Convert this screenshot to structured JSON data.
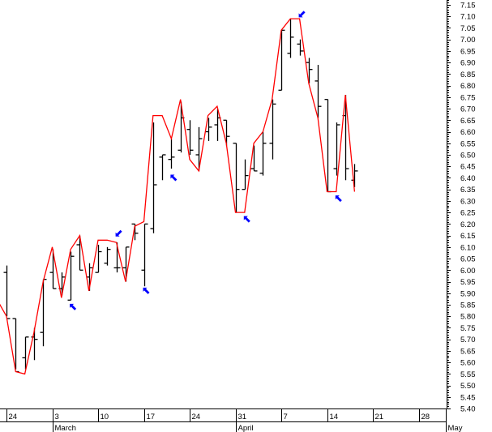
{
  "chart_data": {
    "type": "ohlc",
    "title": "",
    "xlabel": "",
    "ylabel": "",
    "ylim": [
      5.4,
      7.15
    ],
    "y_tick_step": 0.05,
    "y_axis_position": "right",
    "grid": false,
    "colors": {
      "bars": "#000000",
      "line": "#ff0000",
      "arrows": "#0000ff"
    },
    "x_tick_labels": [
      {
        "date": "02-24",
        "label": "24"
      },
      {
        "date": "03-03",
        "label": "3"
      },
      {
        "date": "03-10",
        "label": "10"
      },
      {
        "date": "03-17",
        "label": "17"
      },
      {
        "date": "03-24",
        "label": "24"
      },
      {
        "date": "03-31",
        "label": "31"
      },
      {
        "date": "04-07",
        "label": "7"
      },
      {
        "date": "04-14",
        "label": "14"
      },
      {
        "date": "04-21",
        "label": "21"
      },
      {
        "date": "04-28",
        "label": "28"
      }
    ],
    "month_labels": [
      {
        "date": "03-03",
        "label": "March"
      },
      {
        "date": "03-31",
        "label": "April"
      },
      {
        "date": "05-01",
        "label": "May"
      }
    ],
    "bars": [
      {
        "date": "02-24",
        "o": 5.99,
        "h": 6.02,
        "l": 5.8,
        "c": 5.79
      },
      {
        "date": "02-25",
        "o": 5.79,
        "h": 5.79,
        "l": 5.57,
        "c": 5.56
      },
      {
        "date": "02-26",
        "o": 5.62,
        "h": 5.71,
        "l": 5.57,
        "c": 5.71
      },
      {
        "date": "02-27",
        "o": 5.71,
        "h": 5.75,
        "l": 5.61,
        "c": 5.7
      },
      {
        "date": "02-28",
        "o": 5.73,
        "h": 5.96,
        "l": 5.67,
        "c": 5.96
      },
      {
        "date": "03-03",
        "o": 5.99,
        "h": 6.09,
        "l": 5.92,
        "c": 5.92
      },
      {
        "date": "03-04",
        "o": 5.92,
        "h": 5.99,
        "l": 5.89,
        "c": 5.97
      },
      {
        "date": "03-05",
        "o": 5.87,
        "h": 6.08,
        "l": 5.87,
        "c": 6.06
      },
      {
        "date": "03-06",
        "o": 6.11,
        "h": 6.15,
        "l": 6.0,
        "c": 6.0
      },
      {
        "date": "03-07",
        "o": 5.97,
        "h": 6.03,
        "l": 5.91,
        "c": 6.01
      },
      {
        "date": "03-10",
        "o": 5.99,
        "h": 6.11,
        "l": 5.99,
        "c": 6.08
      },
      {
        "date": "03-11",
        "o": 6.03,
        "h": 6.1,
        "l": 6.02,
        "c": 6.09
      },
      {
        "date": "03-12",
        "o": 6.01,
        "h": 6.12,
        "l": 5.99,
        "c": 6.01
      },
      {
        "date": "03-13",
        "o": 6.01,
        "h": 6.1,
        "l": 5.95,
        "c": 6.1
      },
      {
        "date": "03-14",
        "o": 6.2,
        "h": 6.2,
        "l": 6.13,
        "c": 6.16
      },
      {
        "date": "03-17",
        "o": 6.0,
        "h": 6.2,
        "l": 5.93,
        "c": 6.2
      },
      {
        "date": "03-18",
        "o": 6.18,
        "h": 6.64,
        "l": 6.16,
        "c": 6.37
      },
      {
        "date": "03-19",
        "o": 6.49,
        "h": 6.5,
        "l": 6.39,
        "c": 6.5
      },
      {
        "date": "03-20",
        "o": 6.48,
        "h": 6.57,
        "l": 6.44,
        "c": 6.49
      },
      {
        "date": "03-21",
        "o": 6.52,
        "h": 6.73,
        "l": 6.51,
        "c": 6.66
      },
      {
        "date": "03-24",
        "o": 6.61,
        "h": 6.65,
        "l": 6.5,
        "c": 6.52
      },
      {
        "date": "03-25",
        "o": 6.5,
        "h": 6.62,
        "l": 6.43,
        "c": 6.57
      },
      {
        "date": "03-26",
        "o": 6.6,
        "h": 6.66,
        "l": 6.56,
        "c": 6.62
      },
      {
        "date": "03-27",
        "o": 6.63,
        "h": 6.7,
        "l": 6.56,
        "c": 6.66
      },
      {
        "date": "03-28",
        "o": 6.65,
        "h": 6.65,
        "l": 6.54,
        "c": 6.58
      },
      {
        "date": "03-31",
        "o": 6.55,
        "h": 6.55,
        "l": 6.25,
        "c": 6.35
      },
      {
        "date": "04-01",
        "o": 6.35,
        "h": 6.48,
        "l": 6.35,
        "c": 6.41
      },
      {
        "date": "04-02",
        "o": 6.44,
        "h": 6.54,
        "l": 6.43,
        "c": 6.43
      },
      {
        "date": "04-03",
        "o": 6.42,
        "h": 6.6,
        "l": 6.41,
        "c": 6.55
      },
      {
        "date": "04-04",
        "o": 6.55,
        "h": 6.74,
        "l": 6.48,
        "c": 6.72
      },
      {
        "date": "04-07",
        "o": 6.78,
        "h": 7.04,
        "l": 6.78,
        "c": 7.04
      },
      {
        "date": "04-08",
        "o": 6.94,
        "h": 7.09,
        "l": 6.92,
        "c": 7.01
      },
      {
        "date": "04-09",
        "o": 6.98,
        "h": 7.0,
        "l": 6.93,
        "c": 6.95
      },
      {
        "date": "04-10",
        "o": 6.9,
        "h": 6.92,
        "l": 6.81,
        "c": 6.87
      },
      {
        "date": "04-11",
        "o": 6.82,
        "h": 6.89,
        "l": 6.66,
        "c": 6.71
      },
      {
        "date": "04-14",
        "o": 6.74,
        "h": 6.74,
        "l": 6.34,
        "c": 6.34
      },
      {
        "date": "04-15",
        "o": 6.44,
        "h": 6.64,
        "l": 6.41,
        "c": 6.63
      },
      {
        "date": "04-16",
        "o": 6.67,
        "h": 6.76,
        "l": 6.39,
        "c": 6.44
      },
      {
        "date": "04-17",
        "o": 6.39,
        "h": 6.46,
        "l": 6.36,
        "c": 6.43
      }
    ],
    "line": [
      {
        "date": "02-21",
        "v": 5.87
      },
      {
        "date": "02-24",
        "v": 5.8
      },
      {
        "date": "02-25",
        "v": 5.56
      },
      {
        "date": "02-26",
        "v": 5.55
      },
      {
        "date": "02-27",
        "v": 5.73
      },
      {
        "date": "02-28",
        "v": 5.95
      },
      {
        "date": "03-03",
        "v": 6.1
      },
      {
        "date": "03-04",
        "v": 5.88
      },
      {
        "date": "03-05",
        "v": 6.09
      },
      {
        "date": "03-06",
        "v": 6.15
      },
      {
        "date": "03-07",
        "v": 5.91
      },
      {
        "date": "03-10",
        "v": 6.13
      },
      {
        "date": "03-11",
        "v": 6.13
      },
      {
        "date": "03-12",
        "v": 6.12
      },
      {
        "date": "03-13",
        "v": 5.95
      },
      {
        "date": "03-14",
        "v": 6.19
      },
      {
        "date": "03-17",
        "v": 6.21
      },
      {
        "date": "03-18",
        "v": 6.67
      },
      {
        "date": "03-19",
        "v": 6.67
      },
      {
        "date": "03-20",
        "v": 6.57
      },
      {
        "date": "03-21",
        "v": 6.74
      },
      {
        "date": "03-24",
        "v": 6.48
      },
      {
        "date": "03-25",
        "v": 6.43
      },
      {
        "date": "03-26",
        "v": 6.67
      },
      {
        "date": "03-27",
        "v": 6.71
      },
      {
        "date": "03-28",
        "v": 6.55
      },
      {
        "date": "03-31",
        "v": 6.25
      },
      {
        "date": "04-01",
        "v": 6.25
      },
      {
        "date": "04-02",
        "v": 6.55
      },
      {
        "date": "04-03",
        "v": 6.6
      },
      {
        "date": "04-04",
        "v": 6.74
      },
      {
        "date": "04-07",
        "v": 7.04
      },
      {
        "date": "04-08",
        "v": 7.09
      },
      {
        "date": "04-09",
        "v": 7.09
      },
      {
        "date": "04-10",
        "v": 6.81
      },
      {
        "date": "04-11",
        "v": 6.66
      },
      {
        "date": "04-14",
        "v": 6.34
      },
      {
        "date": "04-15",
        "v": 6.34
      },
      {
        "date": "04-16",
        "v": 6.76
      },
      {
        "date": "04-17",
        "v": 6.34
      }
    ],
    "arrows": [
      {
        "date": "03-05",
        "price": 5.84,
        "direction": "up-left"
      },
      {
        "date": "03-12",
        "price": 6.16,
        "direction": "down-left"
      },
      {
        "date": "03-17",
        "price": 5.91,
        "direction": "up-left"
      },
      {
        "date": "03-20",
        "price": 6.4,
        "direction": "up-left"
      },
      {
        "date": "04-01",
        "price": 6.22,
        "direction": "up-left"
      },
      {
        "date": "04-09",
        "price": 7.11,
        "direction": "down-left"
      },
      {
        "date": "04-15",
        "price": 6.31,
        "direction": "up-left"
      }
    ]
  }
}
